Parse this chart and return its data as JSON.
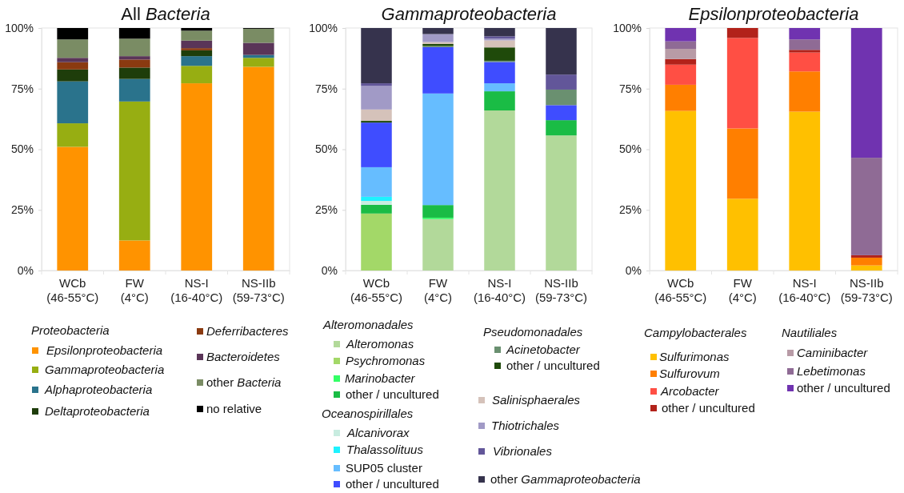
{
  "chart_data": [
    {
      "type": "bar",
      "title": "All Bacteria",
      "stacked": true,
      "legend": "bottom",
      "ylim": [
        0,
        100
      ],
      "yticks": [
        {
          "value": 0,
          "label": "0%"
        },
        {
          "value": 25,
          "label": "25%"
        },
        {
          "value": 50,
          "label": "50%"
        },
        {
          "value": 75,
          "label": "75%"
        },
        {
          "value": 100,
          "label": "100%"
        }
      ],
      "categories": [
        "WCb\n(46-55°C)",
        "FW\n(4°C)",
        "NS-I\n(16-40°C)",
        "NS-IIb\n(59-73°C)"
      ],
      "annotations": [
        "Proteobacteria"
      ],
      "series": [
        {
          "name": "Epsilonproteobacteria",
          "color": "#ff9300",
          "values": [
            51.0,
            12.4,
            77.2,
            84.0
          ]
        },
        {
          "name": "Gammaproteobacteria",
          "color": "#97ae12",
          "values": [
            9.7,
            57.3,
            7.2,
            3.7
          ]
        },
        {
          "name": "Alphaproteobacteria",
          "color": "#2a738c",
          "values": [
            17.3,
            9.3,
            4.0,
            1.2
          ]
        },
        {
          "name": "Deltaproteobacteria",
          "color": "#1e3d0a",
          "values": [
            4.9,
            4.7,
            2.4,
            0
          ]
        },
        {
          "name": "Deferribacteres",
          "color": "#8a3a10",
          "values": [
            3.0,
            3.3,
            0.9,
            0
          ]
        },
        {
          "name": "Bacteroidetes",
          "color": "#5a3558",
          "values": [
            1.8,
            1.4,
            3.1,
            5.0
          ]
        },
        {
          "name": "other Bacteria",
          "color": "#7a8c64",
          "values": [
            7.6,
            7.2,
            4.1,
            5.8
          ]
        },
        {
          "name": "no relative",
          "color": "#000000",
          "values": [
            4.7,
            4.4,
            1.1,
            0.3
          ]
        }
      ]
    },
    {
      "type": "bar",
      "title": "Gammaproteobacteria",
      "stacked": true,
      "legend": "bottom",
      "ylim": [
        0,
        100
      ],
      "yticks": [
        {
          "value": 0,
          "label": "0%"
        },
        {
          "value": 25,
          "label": "25%"
        },
        {
          "value": 50,
          "label": "50%"
        },
        {
          "value": 75,
          "label": "75%"
        },
        {
          "value": 100,
          "label": "100%"
        }
      ],
      "categories": [
        "WCb\n(46-55°C)",
        "FW\n(4°C)",
        "NS-I\n(16-40°C)",
        "NS-IIb\n(59-73°C)"
      ],
      "annotations": [
        "Alteromonadales",
        "Oceanospirillales",
        "Pseudomonadales"
      ],
      "series": [
        {
          "name": "Alteromonas",
          "color": "#b2d99a",
          "values": [
            0,
            21.2,
            66.0,
            55.7
          ]
        },
        {
          "name": "Psychromonas",
          "color": "#a3d868",
          "values": [
            23.5,
            0,
            0,
            0
          ]
        },
        {
          "name": "Marinobacter",
          "color": "#33ff66",
          "values": [
            0,
            0.6,
            0,
            0
          ]
        },
        {
          "name": "other / uncultured",
          "color": "#1abc45",
          "values": [
            3.6,
            5.2,
            7.9,
            6.3
          ]
        },
        {
          "name": "Alcanivorax",
          "color": "#c8ece0",
          "values": [
            1.6,
            0,
            0,
            0
          ]
        },
        {
          "name": "Thalassolituus",
          "color": "#1ef2ff",
          "values": [
            1.7,
            0,
            0,
            0
          ]
        },
        {
          "name": "SUP05 cluster",
          "color": "#66bdff",
          "values": [
            12.2,
            46.0,
            3.3,
            0
          ]
        },
        {
          "name": "other / uncultured",
          "color": "#3f4dff",
          "values": [
            18.4,
            19.1,
            8.8,
            6.2
          ]
        },
        {
          "name": "Acinetobacter",
          "color": "#6a9070",
          "values": [
            0,
            0.5,
            0.5,
            6.4
          ]
        },
        {
          "name": "other / uncultured",
          "color": "#1f4a0a",
          "values": [
            0.7,
            0.8,
            5.5,
            0
          ]
        },
        {
          "name": "Salinisphaerales",
          "color": "#d5c2ba",
          "values": [
            4.7,
            0.8,
            2.9,
            0
          ]
        },
        {
          "name": "Thiotrichales",
          "color": "#a19ac6",
          "values": [
            9.7,
            3.3,
            0.8,
            0
          ]
        },
        {
          "name": "Vibrionales",
          "color": "#625699",
          "values": [
            1.1,
            0,
            0.9,
            6.2
          ]
        },
        {
          "name": "other Gammaproteobacteria",
          "color": "#36334d",
          "values": [
            22.8,
            2.5,
            3.4,
            19.2
          ]
        }
      ]
    },
    {
      "type": "bar",
      "title": "Epsilonproteobacteria",
      "stacked": true,
      "legend": "bottom",
      "ylim": [
        0,
        100
      ],
      "yticks": [
        {
          "value": 0,
          "label": "0%"
        },
        {
          "value": 25,
          "label": "25%"
        },
        {
          "value": 50,
          "label": "50%"
        },
        {
          "value": 75,
          "label": "75%"
        },
        {
          "value": 100,
          "label": "100%"
        }
      ],
      "categories": [
        "WCb\n(46-55°C)",
        "FW\n(4°C)",
        "NS-I\n(16-40°C)",
        "NS-IIb\n(59-73°C)"
      ],
      "annotations": [
        "Campylobacterales",
        "Nautiliales"
      ],
      "series": [
        {
          "name": "Sulfurimonas",
          "color": "#ffc000",
          "values": [
            65.8,
            29.6,
            65.5,
            2.1
          ]
        },
        {
          "name": "Sulfurovum",
          "color": "#ff7f00",
          "values": [
            10.8,
            29.0,
            16.6,
            3.2
          ]
        },
        {
          "name": "Arcobacter",
          "color": "#ff4f44",
          "values": [
            8.3,
            37.3,
            7.8,
            0
          ]
        },
        {
          "name": "other / uncultured",
          "color": "#b2221a",
          "values": [
            2.3,
            4.1,
            1.1,
            1.0
          ]
        },
        {
          "name": "Caminibacter",
          "color": "#b89ba6",
          "values": [
            4.2,
            0,
            0,
            0
          ]
        },
        {
          "name": "Lebetimonas",
          "color": "#8f6b95",
          "values": [
            3.1,
            0,
            4.3,
            40.2
          ]
        },
        {
          "name": "other / uncultured",
          "color": "#7033b0",
          "values": [
            5.5,
            0,
            4.7,
            53.5
          ]
        }
      ]
    }
  ]
}
